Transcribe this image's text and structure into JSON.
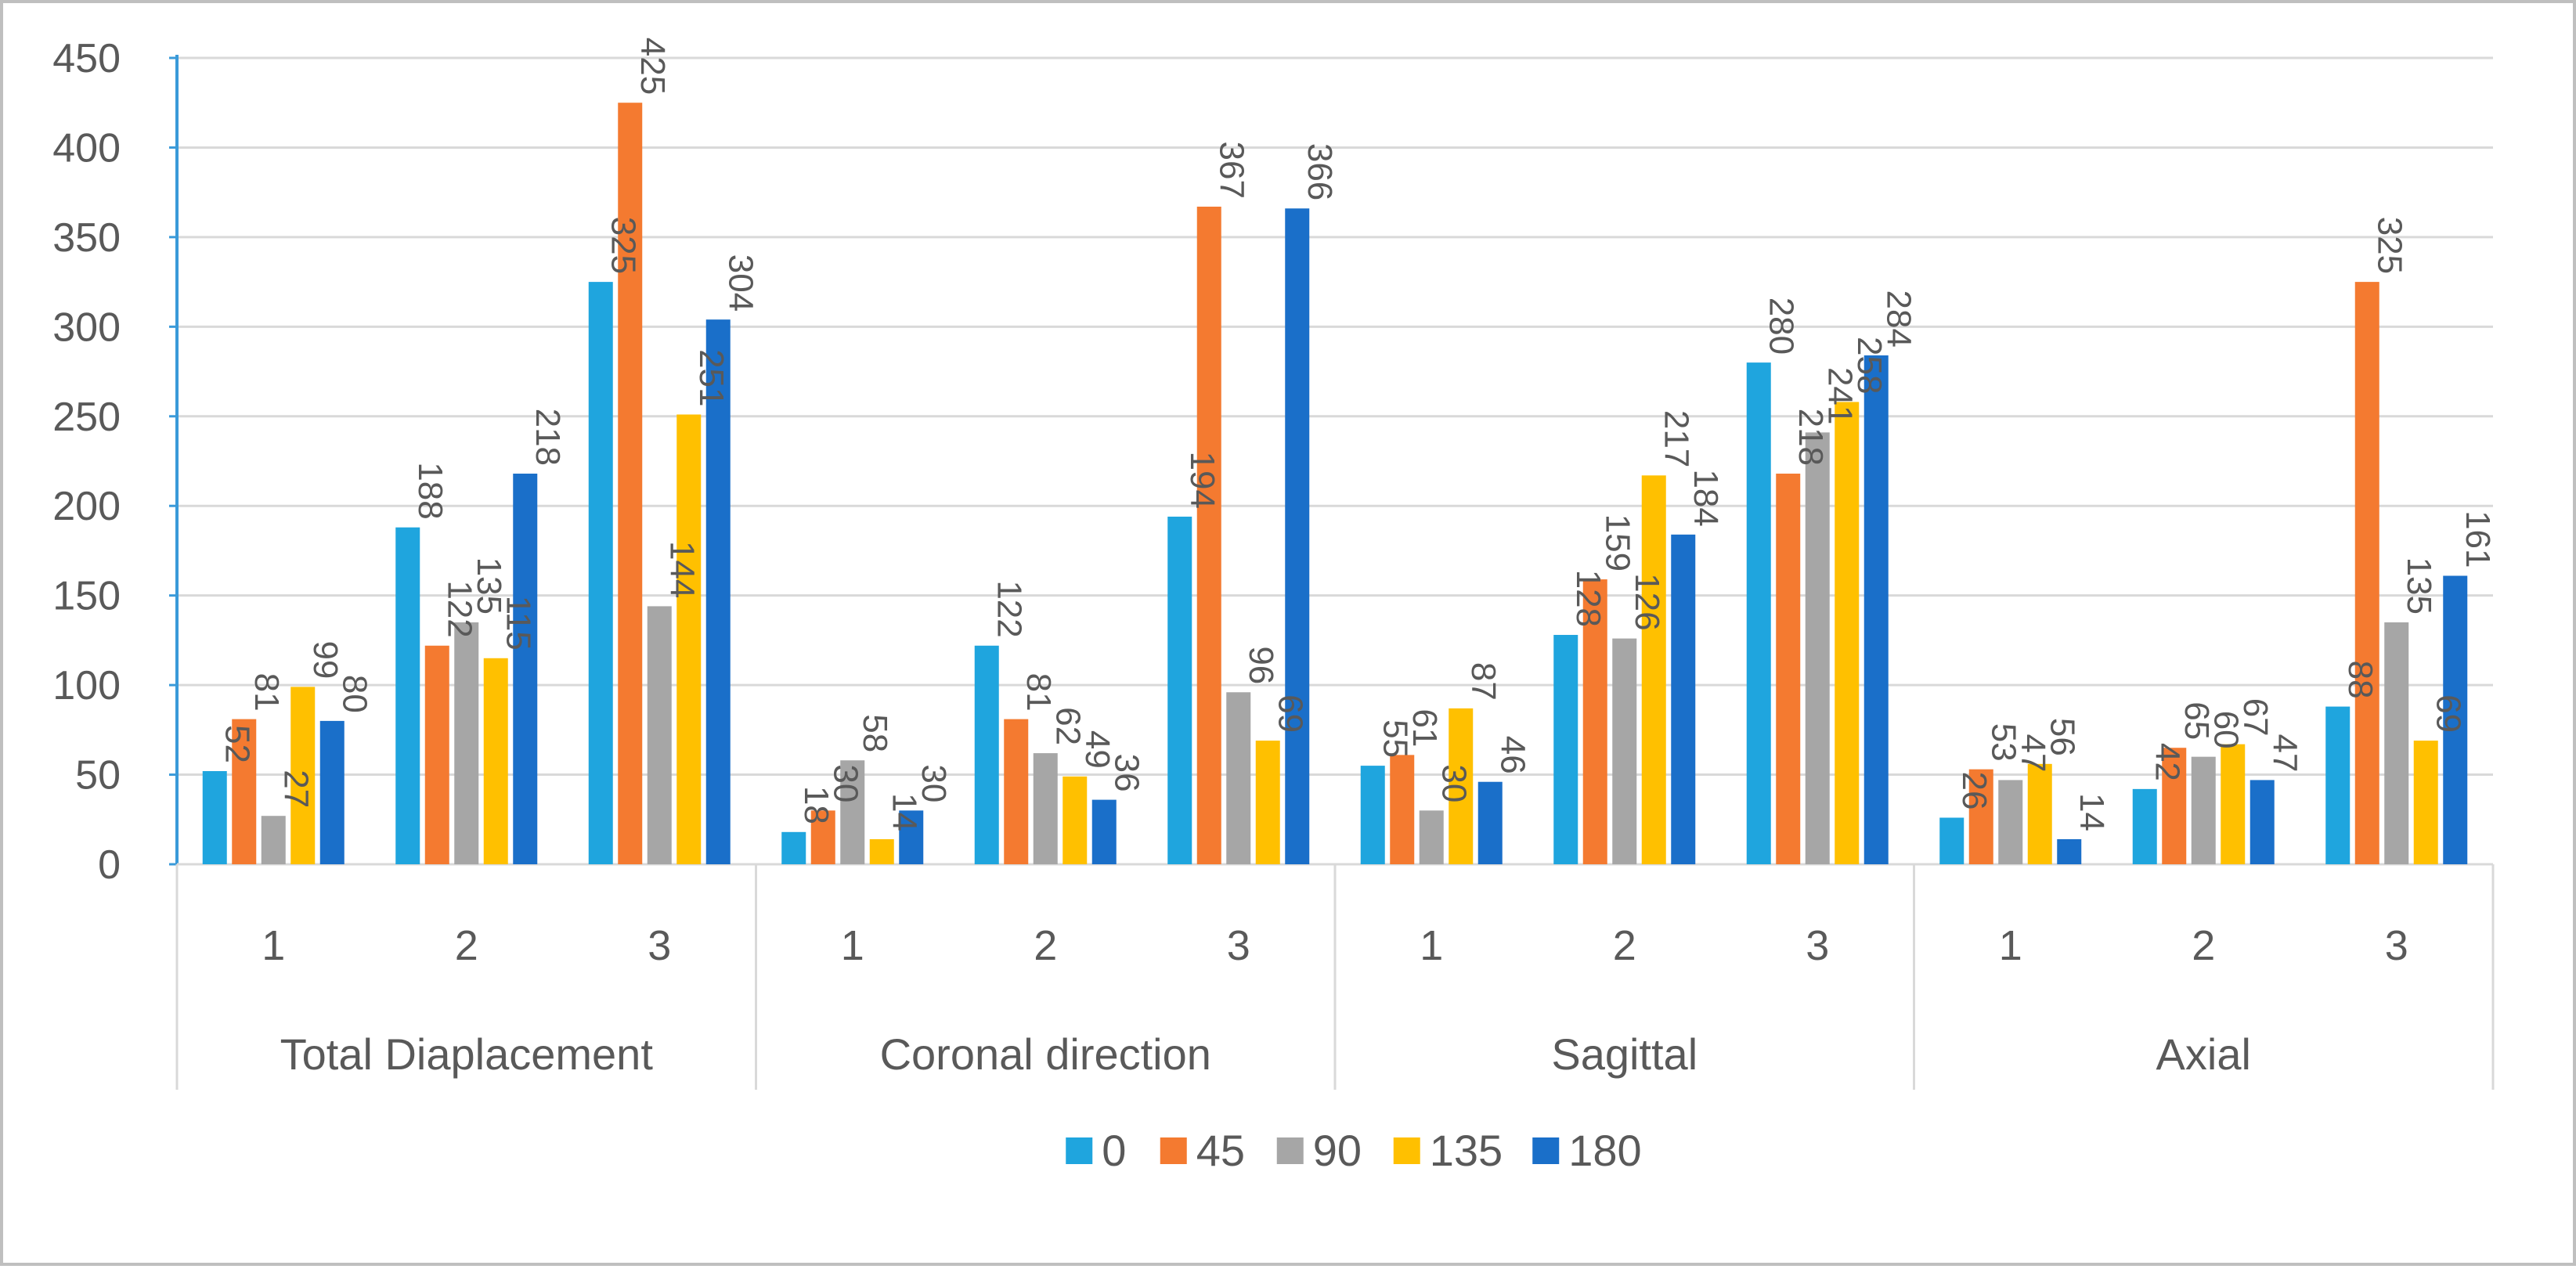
{
  "chart_data": {
    "type": "bar",
    "title": "",
    "xlabel": "",
    "ylabel": "",
    "ylim": [
      0,
      450
    ],
    "yticks": [
      0,
      50,
      100,
      150,
      200,
      250,
      300,
      350,
      400,
      450
    ],
    "grid": true,
    "legend_position": "bottom",
    "groups": [
      {
        "label": "Total Diaplacement",
        "categories": [
          "1",
          "2",
          "3"
        ]
      },
      {
        "label": "Coronal direction",
        "categories": [
          "1",
          "2",
          "3"
        ]
      },
      {
        "label": "Sagittal",
        "categories": [
          "1",
          "2",
          "3"
        ]
      },
      {
        "label": "Axial",
        "categories": [
          "1",
          "2",
          "3"
        ]
      }
    ],
    "series": [
      {
        "name": "0",
        "color": "#1FA5DE",
        "values": [
          52,
          188,
          325,
          18,
          122,
          194,
          55,
          128,
          280,
          26,
          42,
          88
        ]
      },
      {
        "name": "45",
        "color": "#F47A30",
        "values": [
          81,
          122,
          425,
          30,
          81,
          367,
          61,
          159,
          218,
          53,
          65,
          325
        ]
      },
      {
        "name": "90",
        "color": "#A6A6A6",
        "values": [
          27,
          135,
          144,
          58,
          62,
          96,
          30,
          126,
          241,
          47,
          60,
          135
        ]
      },
      {
        "name": "135",
        "color": "#FFC000",
        "values": [
          99,
          115,
          251,
          14,
          49,
          69,
          87,
          217,
          258,
          56,
          67,
          69
        ]
      },
      {
        "name": "180",
        "color": "#1A6FC9",
        "values": [
          80,
          218,
          304,
          30,
          36,
          366,
          46,
          184,
          284,
          14,
          47,
          161
        ]
      }
    ]
  }
}
